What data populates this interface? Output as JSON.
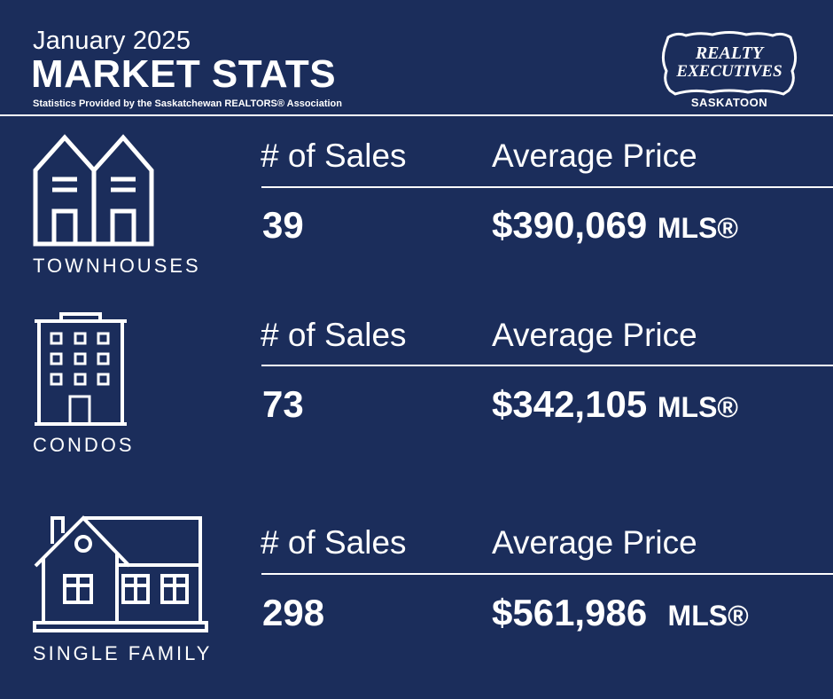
{
  "header": {
    "month": "January 2025",
    "title": "MARKET STATS",
    "source": "Statistics Provided by the Saskatchewan REALTORS® Association"
  },
  "logo": {
    "line1": "REALTY",
    "line2": "EXECUTIVES",
    "caption": "SASKATOON"
  },
  "sections": [
    {
      "category": "TOWNHOUSES",
      "icon": "townhouse-icon",
      "sales_label": "# of Sales",
      "price_label": "Average Price",
      "sales": "39",
      "price": "$390,069",
      "price_suffix": "MLS®"
    },
    {
      "category": "CONDOS",
      "icon": "condo-building-icon",
      "sales_label": "# of Sales",
      "price_label": "Average Price",
      "sales": "73",
      "price": "$342,105",
      "price_suffix": "MLS®"
    },
    {
      "category": "SINGLE FAMILY",
      "icon": "single-family-house-icon",
      "sales_label": "# of Sales",
      "price_label": "Average Price",
      "sales": "298",
      "price": "$561,986 ",
      "price_suffix": "MLS®"
    }
  ],
  "colors": {
    "background": "#1b2d5b",
    "foreground": "#ffffff"
  }
}
